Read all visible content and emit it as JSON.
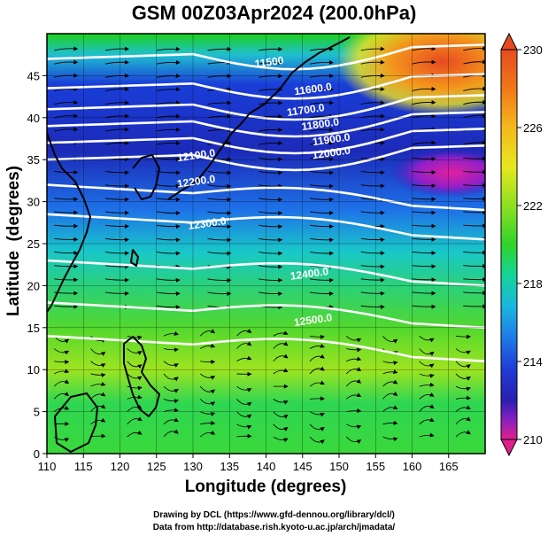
{
  "title": "GSM 00Z03Apr2024 (200.0hPa)",
  "axes": {
    "xlabel": "Longitude (degrees)",
    "ylabel": "Latitude  (degrees)",
    "xlim": [
      110,
      170
    ],
    "ylim": [
      0,
      50
    ],
    "xticks": [
      110,
      115,
      120,
      125,
      130,
      135,
      140,
      145,
      150,
      155,
      160,
      165
    ],
    "yticks": [
      0,
      5,
      10,
      15,
      20,
      25,
      30,
      35,
      40,
      45
    ]
  },
  "colorbar": {
    "min": 210,
    "max": 230,
    "tick_labels": [
      "230",
      "226",
      "222",
      "218",
      "214",
      "210"
    ],
    "colors": [
      "#e0208c",
      "#8a1fbf",
      "#2a1fb0",
      "#1f3cd6",
      "#1e7ae6",
      "#19b6e0",
      "#14d49a",
      "#2fd42a",
      "#6ee020",
      "#b8e81c",
      "#f0e81e",
      "#f5b81c",
      "#f07818",
      "#e84a20"
    ]
  },
  "contour_labels": [
    {
      "text": "11500",
      "lon": 140.5,
      "lat": 46.2
    },
    {
      "text": "11600.0",
      "lon": 146.5,
      "lat": 43.0
    },
    {
      "text": "11700.0",
      "lon": 145.5,
      "lat": 40.5
    },
    {
      "text": "11800.0",
      "lon": 147.5,
      "lat": 38.8
    },
    {
      "text": "11900.0",
      "lon": 149.0,
      "lat": 37.0
    },
    {
      "text": "12000.0",
      "lon": 149.0,
      "lat": 35.4
    },
    {
      "text": "12100.0",
      "lon": 130.5,
      "lat": 35.1
    },
    {
      "text": "12200.0",
      "lon": 130.5,
      "lat": 32.0
    },
    {
      "text": "12300.0",
      "lon": 132.0,
      "lat": 27.0
    },
    {
      "text": "12400.0",
      "lon": 146.0,
      "lat": 21.0
    },
    {
      "text": "12500.0",
      "lon": 146.5,
      "lat": 15.5
    }
  ],
  "credits": {
    "line1": "Drawing by DCL (https://www.gfd-dennou.org/library/dcl/)",
    "line2": "Data from http://database.rish.kyoto-u.ac.jp/arch/jmadata/"
  }
}
